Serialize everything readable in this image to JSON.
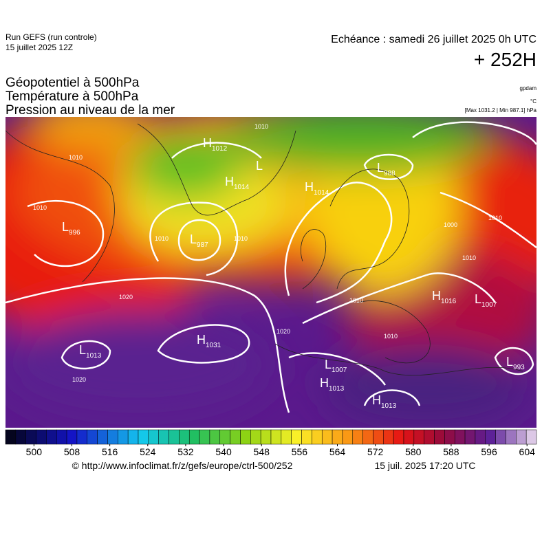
{
  "header": {
    "run": "Run GEFS (run controle)",
    "run_date": "15 juillet 2025 12Z",
    "valid": "Echéance : samedi 26 juillet 2025 0h UTC",
    "lead": "+ 252H",
    "fields": [
      "Géopotentiel à 500hPa",
      "Température à 500hPa",
      "Pression au niveau de la mer"
    ],
    "units": [
      "gpdam",
      "°C",
      "[Max 1031.2 | Min 987.1] hPa"
    ]
  },
  "pressure_centers": [
    {
      "letter": "H",
      "value": "1012"
    },
    {
      "letter": "L",
      "value": null
    },
    {
      "letter": "H",
      "value": "1014"
    },
    {
      "letter": "H",
      "value": "1014"
    },
    {
      "letter": "L",
      "value": "988"
    },
    {
      "letter": "L",
      "value": "996"
    },
    {
      "letter": "L",
      "value": "987"
    },
    {
      "letter": "H",
      "value": "1016"
    },
    {
      "letter": "L",
      "value": "1007"
    },
    {
      "letter": "H",
      "value": "1031"
    },
    {
      "letter": "L",
      "value": "1013"
    },
    {
      "letter": "L",
      "value": "1007"
    },
    {
      "letter": "H",
      "value": "1013"
    },
    {
      "letter": "H",
      "value": "1013"
    },
    {
      "letter": "L",
      "value": "993"
    }
  ],
  "isobar_labels": [
    "1010",
    "1010",
    "1010",
    "1010",
    "1010",
    "1010",
    "1000",
    "1010",
    "1020",
    "1020",
    "1010",
    "1010",
    "1020"
  ],
  "colorbar": {
    "lim": [
      494,
      606
    ],
    "ticks": [
      500,
      508,
      516,
      524,
      532,
      540,
      548,
      556,
      564,
      572,
      580,
      588,
      596,
      604
    ]
  },
  "footer": {
    "url": "© http://www.infoclimat.fr/z/gefs/europe/ctrl-500/252",
    "time": "15 juil. 2025 17:20 UTC"
  }
}
